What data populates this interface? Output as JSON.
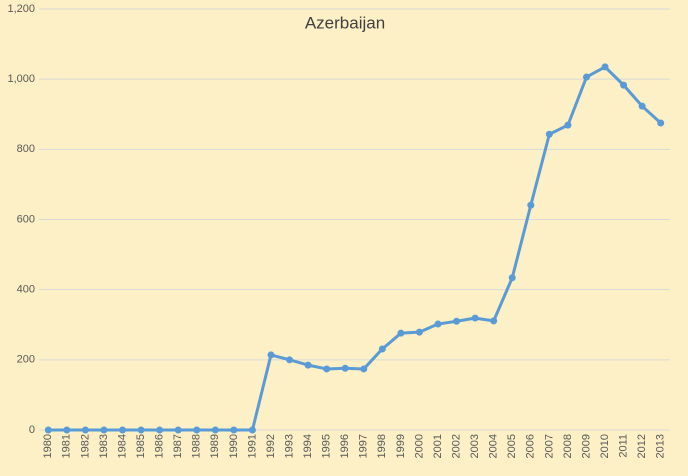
{
  "chart_data": {
    "type": "line",
    "title": "Azerbaijan",
    "categories": [
      "1980",
      "1981",
      "1982",
      "1983",
      "1984",
      "1985",
      "1986",
      "1987",
      "1988",
      "1989",
      "1990",
      "1991",
      "1992",
      "1993",
      "1994",
      "1995",
      "1996",
      "1997",
      "1998",
      "1999",
      "2000",
      "2001",
      "2002",
      "2003",
      "2004",
      "2005",
      "2006",
      "2007",
      "2008",
      "2009",
      "2010",
      "2011",
      "2012",
      "2013"
    ],
    "series": [
      {
        "name": "Azerbaijan",
        "color": "#5b9bd5",
        "values": [
          0,
          0,
          0,
          0,
          0,
          0,
          0,
          0,
          0,
          0,
          0,
          0,
          214,
          200,
          185,
          174,
          176,
          174,
          231,
          276,
          279,
          302,
          310,
          319,
          311,
          434,
          641,
          843,
          869,
          1006,
          1035,
          983,
          923,
          875
        ]
      }
    ],
    "ylim": [
      0,
      1200
    ],
    "yticks": [
      0,
      200,
      400,
      600,
      800,
      {
        "value": 1000,
        "label": "1,000"
      },
      {
        "value": 1200,
        "label": "1,200"
      }
    ],
    "grid": true
  }
}
